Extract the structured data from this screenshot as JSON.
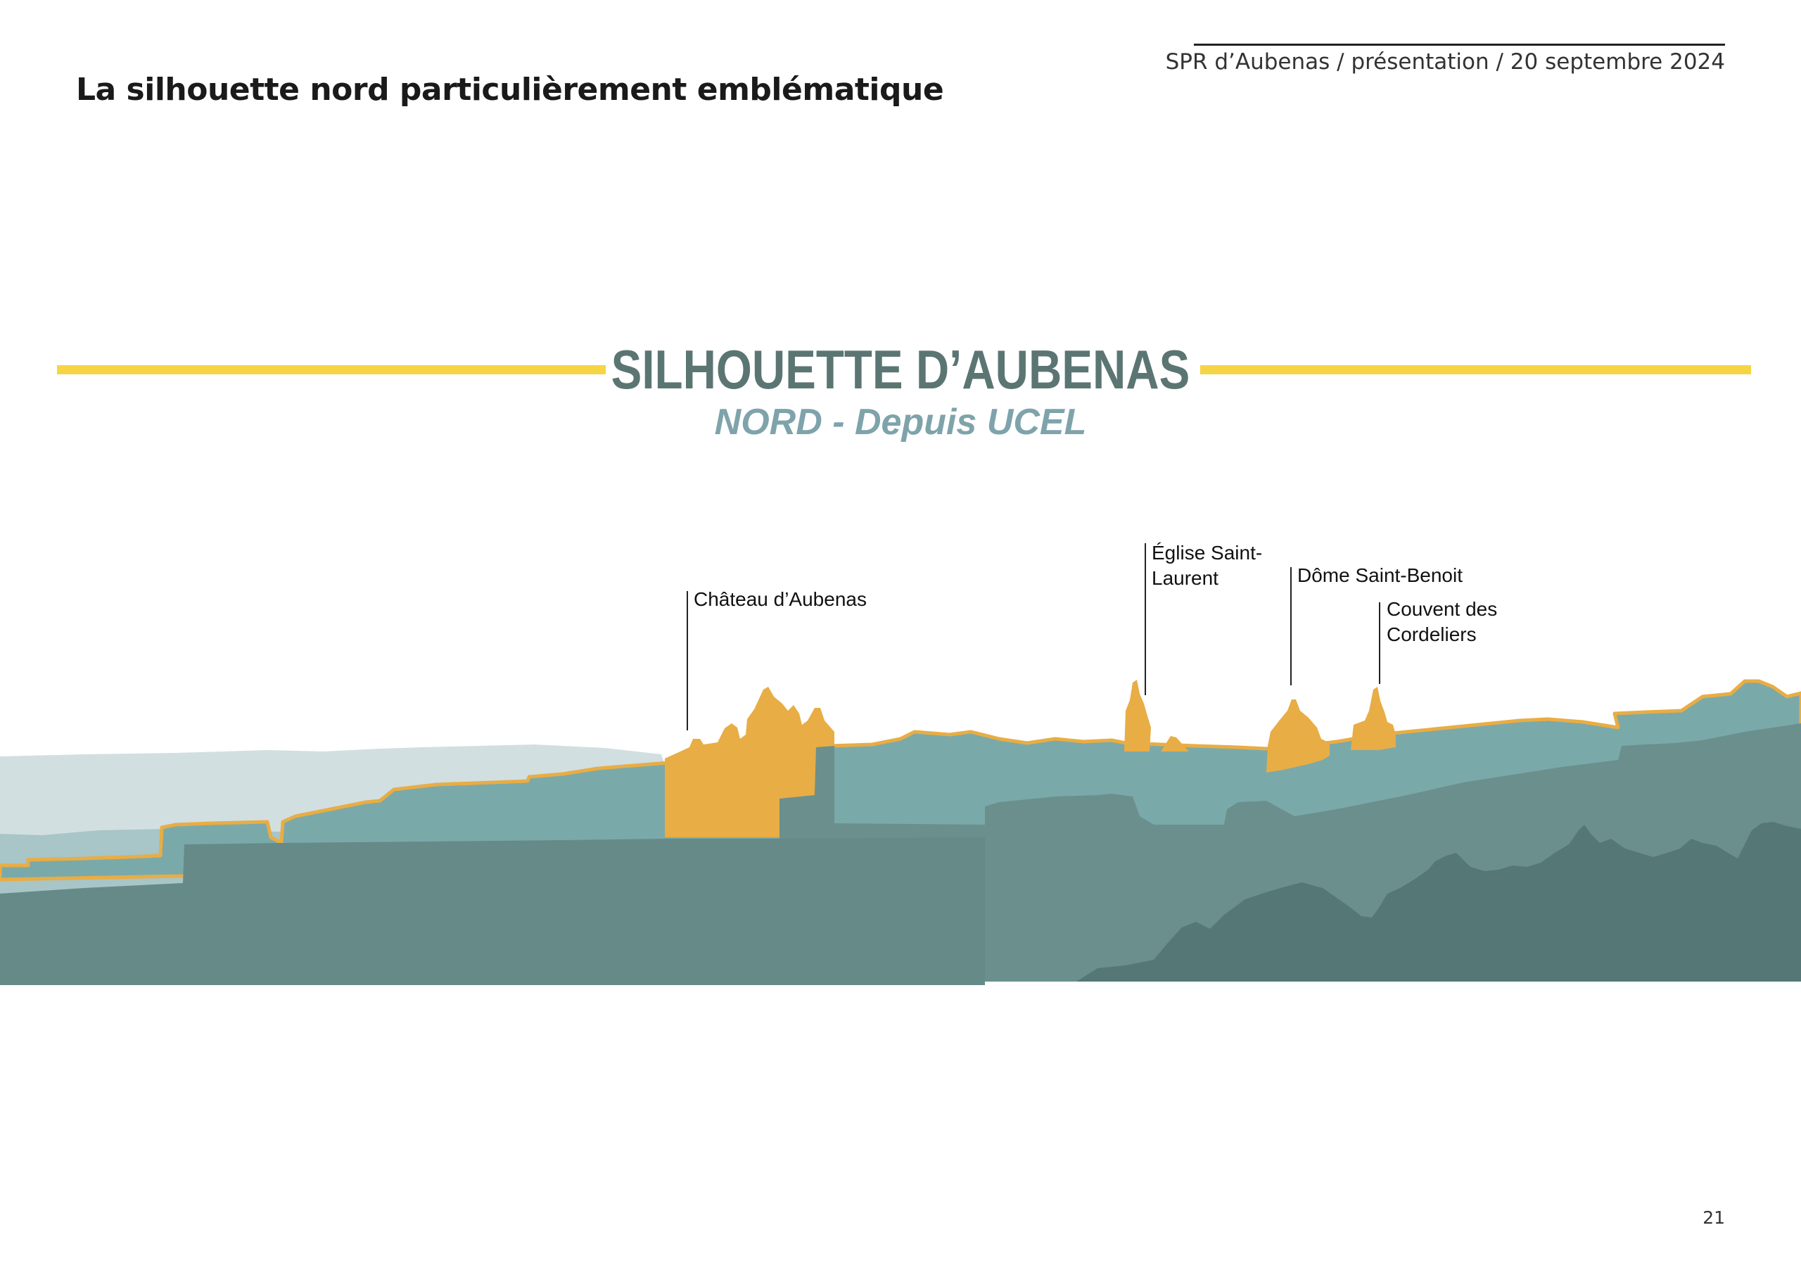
{
  "slide": {
    "title": "La silhouette nord particulièrement emblématique",
    "header_meta": "SPR d’Aubenas / présentation / 20 septembre 2024",
    "page_number": "21"
  },
  "figure": {
    "heading": "SILHOUETTE D’AUBENAS",
    "subheading": "NORD - Depuis UCEL",
    "labels": [
      {
        "id": "chateau",
        "lines": [
          "Château d’Aubenas"
        ]
      },
      {
        "id": "eglise",
        "lines": [
          "Église Saint-",
          "Laurent"
        ]
      },
      {
        "id": "dome",
        "lines": [
          "Dôme Saint-Benoit"
        ]
      },
      {
        "id": "couvent",
        "lines": [
          "Couvent des",
          "Cordeliers"
        ]
      }
    ],
    "colors": {
      "accent_yellow": "#f5d544",
      "landmark_orange": "#e8ad44",
      "far_hills": "#d2dfe0",
      "town_layer": "#7aa9aa",
      "mid_layer": "#6b8f8d",
      "foreground": "#668a88",
      "trees": "#557876",
      "heading": "#5b7573",
      "subheading": "#7ea3ab"
    }
  }
}
